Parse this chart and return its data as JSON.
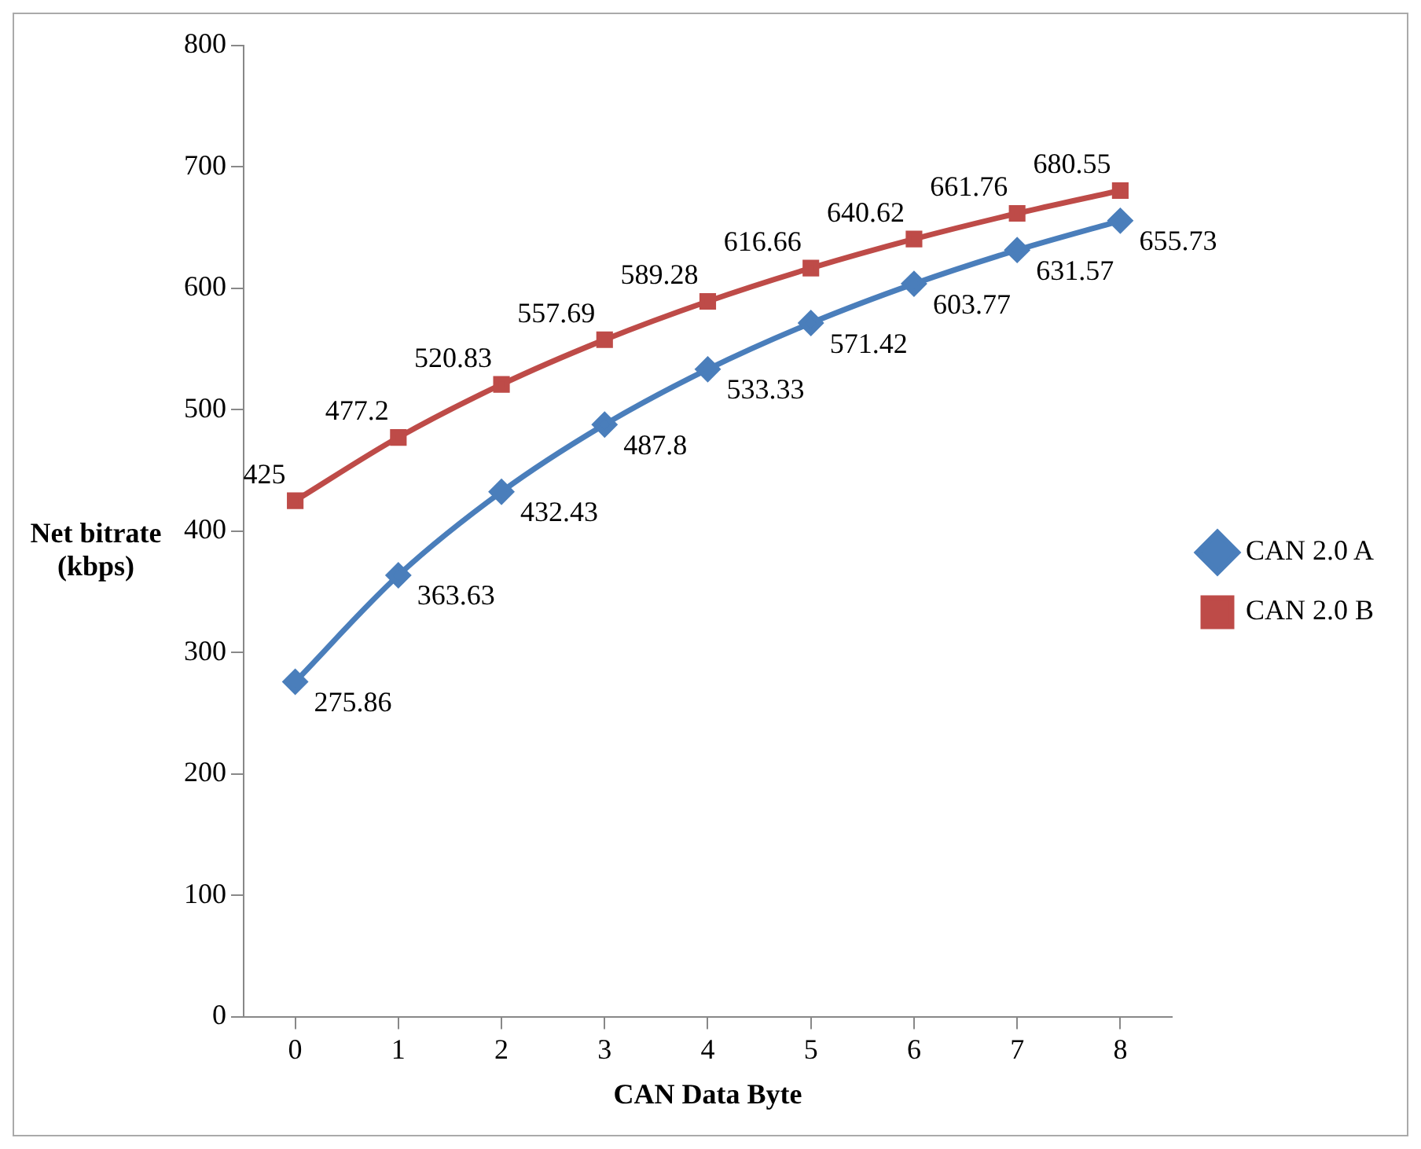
{
  "chart_data": {
    "type": "line",
    "xlabel": "CAN Data Byte",
    "ylabel": "Net bitrate (kbps)",
    "categories": [
      "0",
      "1",
      "2",
      "3",
      "4",
      "5",
      "6",
      "7",
      "8"
    ],
    "series": [
      {
        "name": "CAN 2.0 A",
        "color": "#4a7ebb",
        "marker": "diamond",
        "values": [
          275.86,
          363.63,
          432.43,
          487.8,
          533.33,
          571.42,
          603.77,
          631.57,
          655.73
        ]
      },
      {
        "name": "CAN 2.0 B",
        "color": "#be4b48",
        "marker": "square",
        "values": [
          425,
          477.2,
          520.83,
          557.69,
          589.28,
          616.66,
          640.62,
          661.76,
          680.55
        ]
      }
    ],
    "ylim": [
      0,
      800
    ],
    "yticks": [
      0,
      100,
      200,
      300,
      400,
      500,
      600,
      700,
      800
    ],
    "grid": false,
    "legend": "right",
    "data_labels": true
  }
}
